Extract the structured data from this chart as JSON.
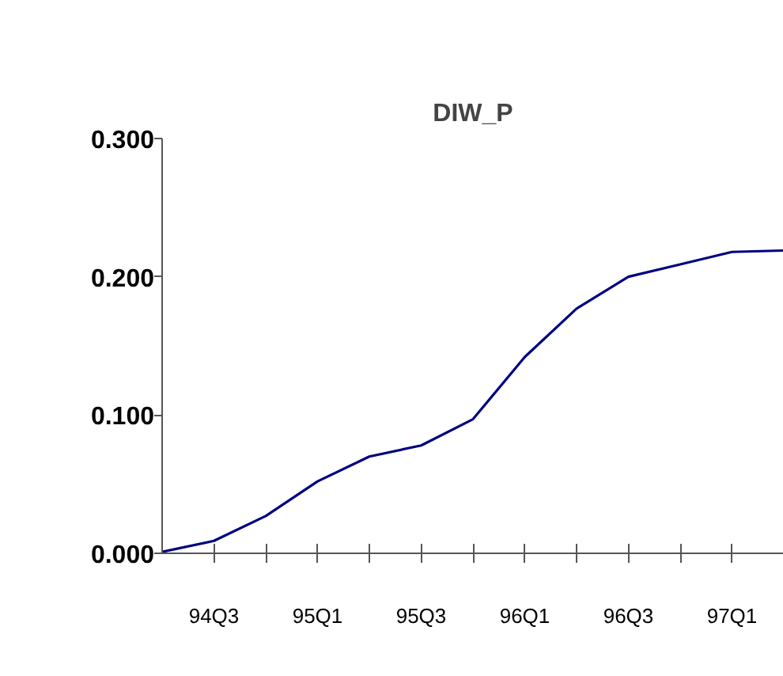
{
  "chart_data": {
    "type": "line",
    "title": "DIW_P",
    "categories": [
      null,
      "94Q3",
      null,
      "95Q1",
      null,
      "95Q3",
      null,
      "96Q1",
      null,
      "96Q3",
      null,
      "97Q1",
      null
    ],
    "series": [
      {
        "color": "#000080",
        "values": [
          0.001,
          0.009,
          0.027,
          0.052,
          0.07,
          0.078,
          0.097,
          0.142,
          0.177,
          0.2,
          0.209,
          0.218,
          0.219
        ]
      }
    ],
    "ylim": [
      0,
      0.3
    ],
    "yticks": [
      {
        "value": 0,
        "label": "0.000"
      },
      {
        "value": 0.1,
        "label": "0.100"
      },
      {
        "value": 0.2,
        "label": "0.200"
      },
      {
        "value": 0.3,
        "label": "0.300"
      }
    ],
    "grid": false,
    "line_style": "solid"
  }
}
